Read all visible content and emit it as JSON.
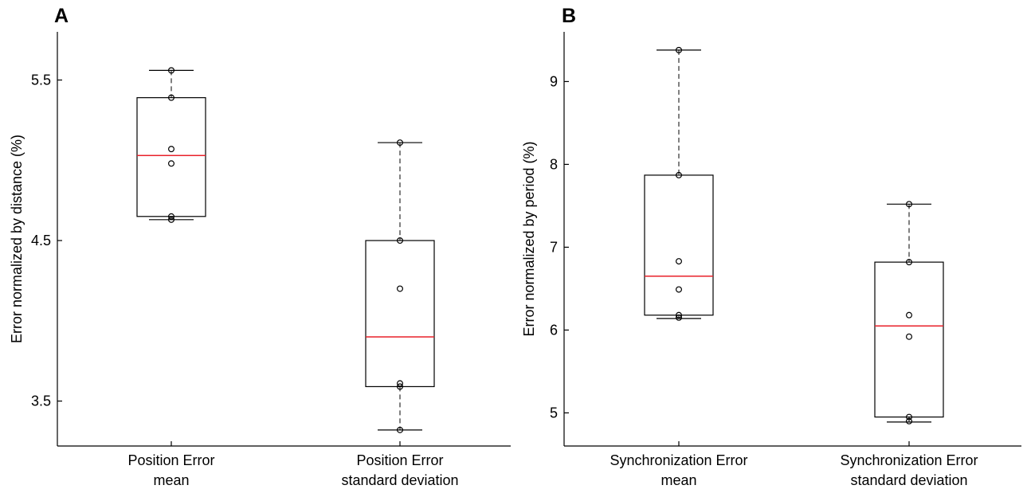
{
  "chart_data": [
    {
      "type": "box",
      "panel_label": "A",
      "title": "",
      "xlabel": "",
      "ylabel": "Error normalized by distance (%)",
      "ylim": [
        3.22,
        5.8
      ],
      "yticks": [
        3.5,
        4.5,
        5.5
      ],
      "ytick_labels": [
        "3.5",
        "4.5",
        "5.5"
      ],
      "grid": false,
      "median_color": "#e8212a",
      "categories": [
        {
          "lines": [
            "Position Error",
            "mean"
          ]
        },
        {
          "lines": [
            "Position Error",
            "standard deviation"
          ]
        }
      ],
      "boxes": [
        {
          "whisker_low": 4.63,
          "q1": 4.65,
          "median": 5.03,
          "q3": 5.39,
          "whisker_high": 5.56,
          "points": [
            5.56,
            5.39,
            5.07,
            4.98,
            4.65,
            4.63
          ]
        },
        {
          "whisker_low": 3.32,
          "q1": 3.59,
          "median": 3.9,
          "q3": 4.5,
          "whisker_high": 5.11,
          "points": [
            5.11,
            4.5,
            4.2,
            3.61,
            3.59,
            3.32
          ]
        }
      ]
    },
    {
      "type": "box",
      "panel_label": "B",
      "title": "",
      "xlabel": "",
      "ylabel": "Error normalized by period (%)",
      "ylim": [
        4.6,
        9.6
      ],
      "yticks": [
        5,
        6,
        7,
        8,
        9
      ],
      "ytick_labels": [
        "5",
        "6",
        "7",
        "8",
        "9"
      ],
      "grid": false,
      "median_color": "#e8212a",
      "categories": [
        {
          "lines": [
            "Synchronization Error",
            "mean"
          ]
        },
        {
          "lines": [
            "Synchronization Error",
            "standard deviation"
          ]
        }
      ],
      "boxes": [
        {
          "whisker_low": 6.14,
          "q1": 6.18,
          "median": 6.65,
          "q3": 7.87,
          "whisker_high": 9.38,
          "points": [
            9.38,
            7.87,
            6.83,
            6.49,
            6.18,
            6.15
          ]
        },
        {
          "whisker_low": 4.89,
          "q1": 4.95,
          "median": 6.05,
          "q3": 6.82,
          "whisker_high": 7.52,
          "points": [
            7.52,
            6.82,
            6.18,
            5.92,
            4.95,
            4.9
          ]
        }
      ]
    }
  ]
}
